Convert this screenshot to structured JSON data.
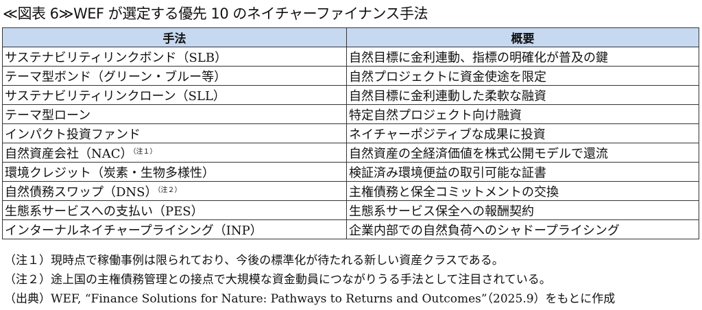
{
  "title": "≪図表 6≫WEF が選定する優先 10 のネイチャーファイナンス手法",
  "table": {
    "headers": [
      "手法",
      "概要"
    ],
    "rows": [
      {
        "method": "サステナビリティリンクボンド（SLB）",
        "note": "",
        "summary": "自然目標に金利連動、指標の明確化が普及の鍵"
      },
      {
        "method": "テーマ型ボンド（グリーン・ブルー等）",
        "note": "",
        "summary": "自然プロジェクトに資金使途を限定"
      },
      {
        "method": "サステナビリティリンクローン（SLL）",
        "note": "",
        "summary": "自然目標に金利連動した柔軟な融資"
      },
      {
        "method": "テーマ型ローン",
        "note": "",
        "summary": "特定自然プロジェクト向け融資"
      },
      {
        "method": "インパクト投資ファンド",
        "note": "",
        "summary": "ネイチャーポジティブな成果に投資"
      },
      {
        "method": "自然資産会社（NAC）",
        "note": "（注１）",
        "summary": "自然資産の全経済価値を株式公開モデルで還流"
      },
      {
        "method": "環境クレジット（炭素・生物多様性）",
        "note": "",
        "summary": "検証済み環境便益の取引可能な証書"
      },
      {
        "method": "自然債務スワップ（DNS）",
        "note": "（注２）",
        "summary": "主権債務と保全コミットメントの交換"
      },
      {
        "method": "生態系サービスへの支払い（PES）",
        "note": "",
        "summary": "生態系サービス保全への報酬契約"
      },
      {
        "method": "インターナルネイチャープライシング（INP）",
        "note": "",
        "summary": "企業内部での自然負荷へのシャドープライシング"
      }
    ]
  },
  "notes": [
    "（注１）現時点で稼働事例は限られており、今後の標準化が待たれる新しい資産クラスである。",
    "（注２）途上国の主権債務管理との接点で大規模な資金動員につながりうる手法として注目されている。",
    "（出典）WEF, “Finance Solutions for Nature: Pathways to Returns and Outcomes”（2025.9）をもとに作成"
  ],
  "colors": {
    "header_bg": "#c6d9f0",
    "border": "#333333"
  }
}
